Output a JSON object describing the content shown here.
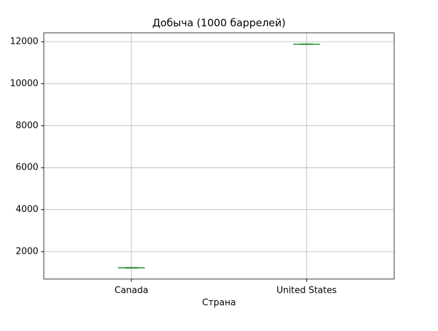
{
  "chart_data": {
    "type": "box",
    "title": "Добыча (1000 баррелей)",
    "xlabel": "Страна",
    "categories": [
      "Canada",
      "United States"
    ],
    "boxes": [
      {
        "low": 1215,
        "q1": 1225,
        "median": 1232,
        "q3": 1240,
        "high": 1248
      },
      {
        "low": 11865,
        "q1": 11872,
        "median": 11880,
        "q3": 11888,
        "high": 11895
      }
    ],
    "box_color": "#1f77b4",
    "median_color": "#2ca02c",
    "whisker_color": "#000000",
    "ylim": [
      697,
      12423
    ],
    "yticks": [
      2000,
      4000,
      6000,
      8000,
      10000,
      12000
    ],
    "grid": true
  }
}
